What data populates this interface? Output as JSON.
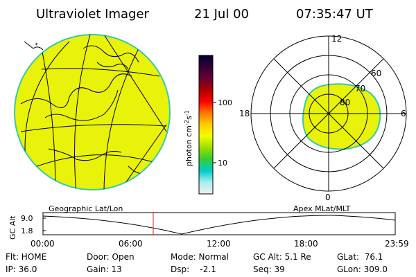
{
  "header": {
    "title": "Ultraviolet Imager",
    "date": "21 Jul 00",
    "time": "07:35:47 UT"
  },
  "colors": {
    "aurora_fill": "#e8f20a",
    "aurora_edge": "#33ccaa",
    "line": "#000000",
    "time_marker": "#cc2222"
  },
  "globe": {
    "caption": "Geographic Lat/Lon"
  },
  "polar": {
    "caption": "Apex MLat/MLT",
    "mlt_labels": {
      "top": "12",
      "left": "18",
      "right": "6",
      "bottom": "0"
    },
    "lat_labels": [
      "60",
      "70",
      "80"
    ]
  },
  "colorbar": {
    "unit_label": "photon cm",
    "unit_sup1": "-2",
    "unit_mid": "s",
    "unit_sup2": "-1",
    "tick_100": "100",
    "tick_10": "10",
    "stops": [
      "#000033",
      "#330033",
      "#660033",
      "#aa0000",
      "#ff0000",
      "#ff7700",
      "#ffcc00",
      "#eeff00",
      "#99dd00",
      "#33cc33",
      "#00cccc",
      "#aaeeee",
      "#eeeeee"
    ]
  },
  "altitude_strip": {
    "axis_label": "GC Alt",
    "y_max": "9.0",
    "y_min": "1.8",
    "x_labels": [
      "00:00",
      "06:00",
      "12:00",
      "18:00",
      "23:59"
    ]
  },
  "footer": {
    "row1": {
      "flt": "Flt: HOME",
      "door": "Door: Open",
      "mode": "Mode: Normal",
      "gc_alt": "GC Alt: 5.1 Re",
      "glat": "GLat:  76.1"
    },
    "row2": {
      "ip": "IP: 36.0",
      "gain": "Gain: 13",
      "dsp": "Dsp:    -2.1",
      "seq": "Seq: 39",
      "glon": "GLon: 309.0"
    }
  }
}
